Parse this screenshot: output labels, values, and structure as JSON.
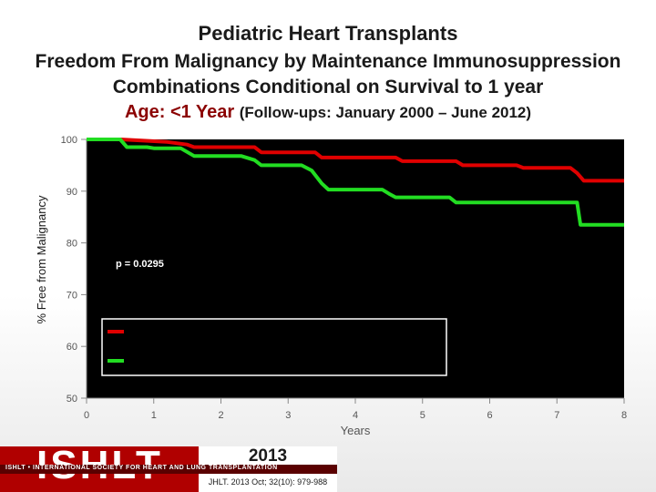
{
  "slide": {
    "title": "Pediatric Heart Transplants",
    "subtitle_line1": "Freedom From Malignancy by Maintenance Immunosuppression",
    "subtitle_line2": "Combinations Conditional on Survival to 1 year",
    "age_label": "Age: <1 Year",
    "followup": "(Follow-ups: January 2000 – June 2012)"
  },
  "chart_data": {
    "type": "line",
    "xlabel": "Years",
    "ylabel": "% Free from Malignancy",
    "xlim": [
      0,
      8
    ],
    "ylim": [
      50,
      100
    ],
    "x_ticks": [
      "0",
      "1",
      "2",
      "3",
      "4",
      "5",
      "6",
      "7",
      "8"
    ],
    "y_ticks": [
      "50",
      "60",
      "70",
      "80",
      "90",
      "100"
    ],
    "annotation": "p = 0.0295",
    "legend_position": "center-right",
    "background": "#000000",
    "series": [
      {
        "color": "#e00000",
        "points": [
          [
            0,
            100
          ],
          [
            0.5,
            100
          ],
          [
            1.2,
            99.5
          ],
          [
            1.5,
            99
          ],
          [
            1.6,
            98.5
          ],
          [
            2.5,
            98.5
          ],
          [
            2.6,
            97.5
          ],
          [
            3.4,
            97.5
          ],
          [
            3.5,
            96.5
          ],
          [
            4.6,
            96.5
          ],
          [
            4.7,
            95.8
          ],
          [
            5.5,
            95.8
          ],
          [
            5.6,
            95
          ],
          [
            6.4,
            95
          ],
          [
            6.5,
            94.5
          ],
          [
            7.2,
            94.5
          ],
          [
            7.3,
            93.5
          ],
          [
            7.4,
            92
          ],
          [
            8,
            92
          ]
        ]
      },
      {
        "color": "#22dd22",
        "points": [
          [
            0,
            100
          ],
          [
            0.5,
            100
          ],
          [
            0.6,
            98.5
          ],
          [
            0.9,
            98.5
          ],
          [
            1.0,
            98.3
          ],
          [
            1.4,
            98.3
          ],
          [
            1.6,
            96.8
          ],
          [
            2.3,
            96.8
          ],
          [
            2.5,
            96
          ],
          [
            2.6,
            95
          ],
          [
            3.2,
            95
          ],
          [
            3.35,
            94
          ],
          [
            3.5,
            91.5
          ],
          [
            3.6,
            90.3
          ],
          [
            4.4,
            90.3
          ],
          [
            4.5,
            89.5
          ],
          [
            4.6,
            88.8
          ],
          [
            5.4,
            88.8
          ],
          [
            5.5,
            87.8
          ],
          [
            7.3,
            87.8
          ],
          [
            7.35,
            83.5
          ],
          [
            8,
            83.5
          ]
        ]
      }
    ]
  },
  "footer": {
    "logo_text": "ISHLT",
    "org_name": "ISHLT • INTERNATIONAL SOCIETY FOR HEART AND LUNG TRANSPLANTATION",
    "year": "2013",
    "citation": "JHLT. 2013 Oct; 32(10): 979-988"
  }
}
